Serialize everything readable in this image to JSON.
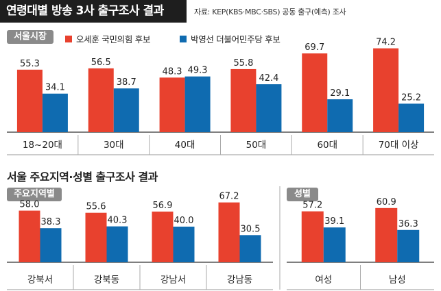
{
  "header": {
    "title": "연령대별 방송 3사 출구조사 결과",
    "source": "자료: KEP(KBS·MBC·SBS) 공동 출구(예측) 조사"
  },
  "colors": {
    "red": "#e8412e",
    "blue": "#0f6bb0",
    "badge": "#8a8a8a"
  },
  "legend": {
    "badge": "서울시장",
    "red_label": "오세훈 국민의힘 후보",
    "blue_label": "박영선 더불어민주당 후보"
  },
  "section2": {
    "title": "서울 주요지역·성별 출구조사 결과",
    "region_badge": "주요지역별",
    "gender_badge": "성별"
  },
  "chart_data": [
    {
      "type": "bar",
      "categories": [
        "18~20대",
        "30대",
        "40대",
        "50대",
        "60대",
        "70대 이상"
      ],
      "series": [
        {
          "name": "오세훈 국민의힘 후보",
          "values": [
            55.3,
            56.5,
            48.3,
            55.8,
            69.7,
            74.2
          ]
        },
        {
          "name": "박영선 더불어민주당 후보",
          "values": [
            34.1,
            38.7,
            49.3,
            42.4,
            29.1,
            25.2
          ]
        }
      ]
    },
    {
      "type": "bar",
      "categories": [
        "강북서",
        "강북동",
        "강남서",
        "강남동"
      ],
      "series": [
        {
          "name": "오세훈 국민의힘 후보",
          "values": [
            58.0,
            55.6,
            56.9,
            67.2
          ]
        },
        {
          "name": "박영선 더불어민주당 후보",
          "values": [
            38.3,
            40.3,
            40.0,
            30.5
          ]
        }
      ]
    },
    {
      "type": "bar",
      "categories": [
        "여성",
        "남성"
      ],
      "series": [
        {
          "name": "오세훈 국민의힘 후보",
          "values": [
            57.2,
            60.9
          ]
        },
        {
          "name": "박영선 더불어민주당 후보",
          "values": [
            39.1,
            36.3
          ]
        }
      ]
    }
  ]
}
